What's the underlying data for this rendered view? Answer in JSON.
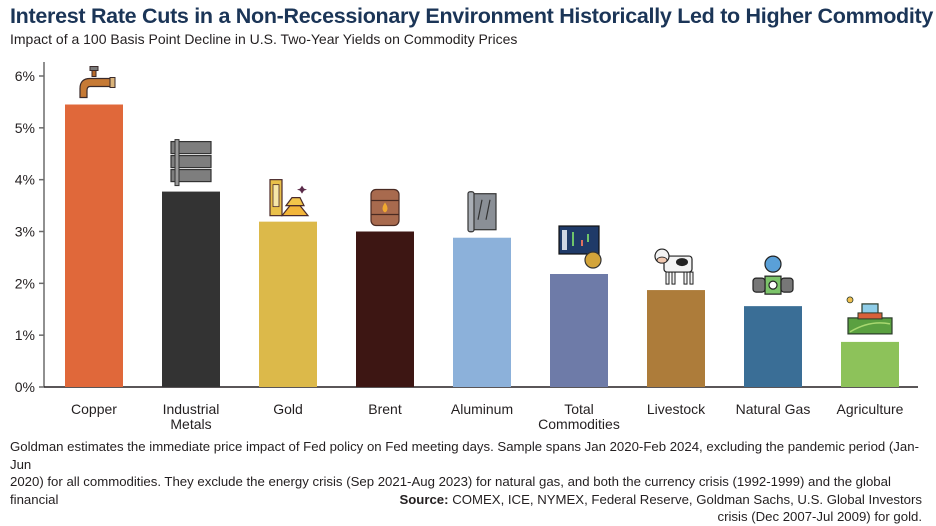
{
  "chart_data": {
    "type": "bar",
    "title": "Interest Rate Cuts in a Non-Recessionary Environment Historically Led to Higher Commodity Prices",
    "subtitle": "Impact of a 100 Basis Point Decline in U.S. Two-Year Yields on Commodity Prices",
    "xlabel": "",
    "ylabel": "",
    "ylim": [
      0,
      6
    ],
    "yticks": [
      0,
      1,
      2,
      3,
      4,
      5,
      6
    ],
    "ytick_labels": [
      "0%",
      "1%",
      "2%",
      "3%",
      "4%",
      "5%",
      "6%"
    ],
    "grid": false,
    "legend": "none",
    "categories": [
      [
        "Copper"
      ],
      [
        "Industrial",
        "Metals"
      ],
      [
        "Gold"
      ],
      [
        "Brent"
      ],
      [
        "Aluminum"
      ],
      [
        "Total",
        "Commodities"
      ],
      [
        "Livestock"
      ],
      [
        "Natural Gas"
      ],
      [
        "Agriculture"
      ]
    ],
    "values": [
      5.45,
      3.77,
      3.19,
      3.0,
      2.88,
      2.18,
      1.87,
      1.56,
      0.87
    ],
    "unit": "%",
    "colors": [
      "#e0683a",
      "#333333",
      "#dcb94a",
      "#3d1613",
      "#8cb1da",
      "#6e7ba8",
      "#ad7c3a",
      "#3a6e96",
      "#8dc25a"
    ],
    "icons": [
      "faucet-icon",
      "metal-ingots-icon",
      "gold-bars-icon",
      "oil-barrel-icon",
      "aluminum-sheet-roll-icon",
      "stock-chart-coin-icon",
      "cow-icon",
      "gas-pressure-gauge-icon",
      "tractor-field-icon"
    ]
  },
  "footnote": {
    "line1": "Goldman estimates the immediate price impact of Fed policy on Fed meeting days. Sample spans Jan 2020-Feb 2024, excluding the pandemic period (Jan-Jun",
    "line2": "2020) for all commodities. They exclude the energy crisis (Sep 2021-Aug 2023) for natural gas, and both the currency crisis (1992-1999) and the global financial",
    "line3": "crisis (Dec 2007-Jul 2009) for gold."
  },
  "source": {
    "label": "Source:",
    "text": " COMEX, ICE, NYMEX, Federal Reserve, Goldman Sachs, U.S. Global Investors"
  }
}
